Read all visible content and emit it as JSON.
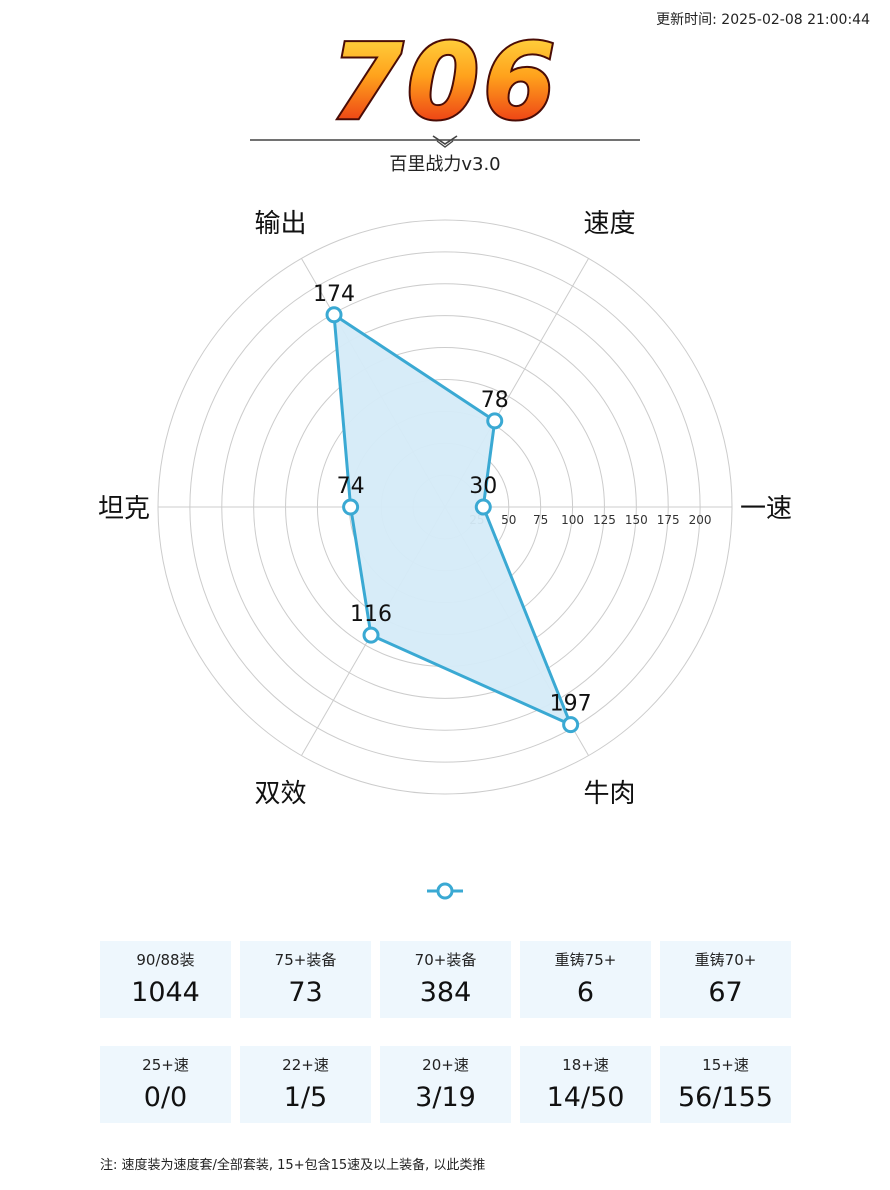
{
  "header": {
    "update_time": "更新时间: 2025-02-08 21:00:44",
    "score": "706",
    "subtitle": "百里战力v3.0"
  },
  "chart_data": {
    "type": "radar",
    "title": "",
    "axes": [
      "一速",
      "速度",
      "输出",
      "坦克",
      "双效",
      "牛肉"
    ],
    "values": [
      30,
      78,
      174,
      74,
      116,
      197
    ],
    "rlim": [
      0,
      225
    ],
    "rings": [
      25,
      50,
      75,
      100,
      125,
      150,
      175,
      200,
      225
    ],
    "tick_labels": [
      "25",
      "50",
      "75",
      "100",
      "125",
      "150",
      "175",
      "200"
    ],
    "grid": true,
    "colors": {
      "line": "#3aa9d3",
      "fill": "#d5ebf8",
      "grid": "#cccccc"
    }
  },
  "stats_equipment": [
    {
      "label": "90/88装",
      "value": "1044"
    },
    {
      "label": "75+装备",
      "value": "73"
    },
    {
      "label": "70+装备",
      "value": "384"
    },
    {
      "label": "重铸75+",
      "value": "6"
    },
    {
      "label": "重铸70+",
      "value": "67"
    }
  ],
  "stats_speed": [
    {
      "label": "25+速",
      "value": "0/0"
    },
    {
      "label": "22+速",
      "value": "1/5"
    },
    {
      "label": "20+速",
      "value": "3/19"
    },
    {
      "label": "18+速",
      "value": "14/50"
    },
    {
      "label": "15+速",
      "value": "56/155"
    }
  ],
  "footnote": "注: 速度装为速度套/全部套装, 15+包含15速及以上装备, 以此类推"
}
